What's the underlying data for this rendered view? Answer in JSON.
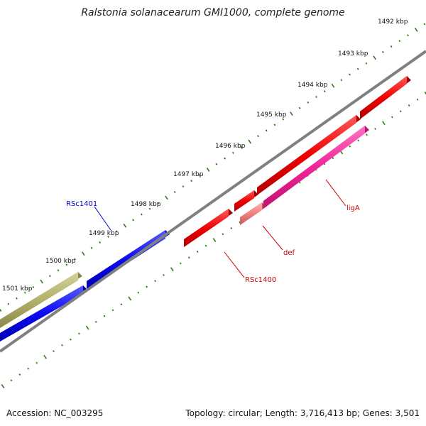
{
  "title": "Ralstonia solanacearum GMI1000, complete genome",
  "footer": {
    "accession": "Accession: NC_003295",
    "summary": "Topology: circular; Length: 3,716,413 bp; Genes: 3,501"
  },
  "scale": {
    "labels": [
      "1492 kbp",
      "1493 kbp",
      "1494 kbp",
      "1495 kbp",
      "1496 kbp",
      "1497 kbp",
      "1498 kbp",
      "1499 kbp",
      "1500 kbp",
      "1501 kbp"
    ],
    "tick_color": "#2e7d1a"
  },
  "colors": {
    "backbone": "#808080",
    "blue_gene": "#0a0af0",
    "red_gene": "#f00000",
    "olive_gene": "#b2b069",
    "magenta_gene": "#f0259a",
    "salmon_gene": "#f08080",
    "blue_label": "#0000cc",
    "red_label": "#cc0000"
  },
  "gene_labels": {
    "rsc1401": "RSc1401",
    "liga": "ligA",
    "def": "def",
    "rsc1400": "RSc1400"
  }
}
